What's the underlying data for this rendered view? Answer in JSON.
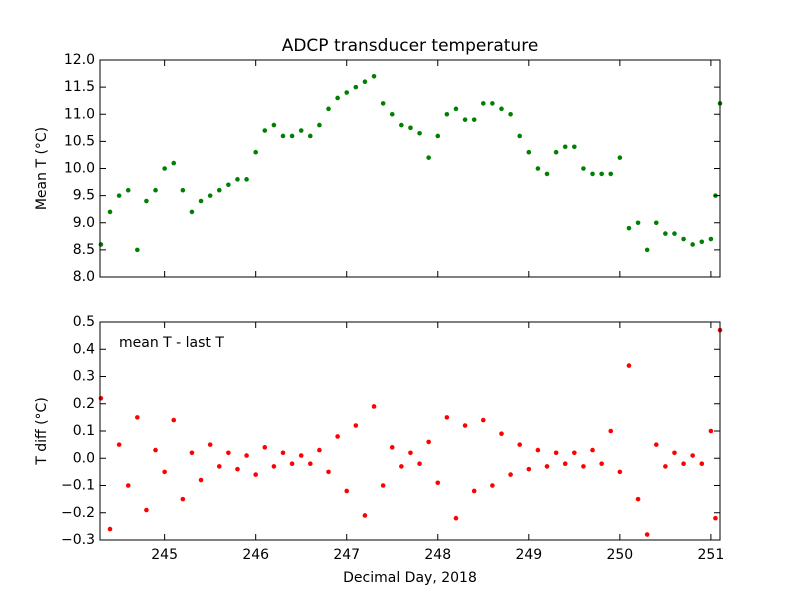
{
  "chart_data": [
    {
      "type": "scatter",
      "title": "ADCP transducer temperature",
      "ylabel": "Mean T (°C)",
      "color": "#008000",
      "x": [
        244.3,
        244.4,
        244.5,
        244.6,
        244.7,
        244.8,
        244.9,
        245.0,
        245.1,
        245.2,
        245.3,
        245.4,
        245.5,
        245.6,
        245.7,
        245.8,
        245.9,
        246.0,
        246.1,
        246.2,
        246.3,
        246.4,
        246.5,
        246.6,
        246.7,
        246.8,
        246.9,
        247.0,
        247.1,
        247.2,
        247.3,
        247.4,
        247.5,
        247.6,
        247.7,
        247.8,
        247.9,
        248.0,
        248.1,
        248.2,
        248.3,
        248.4,
        248.5,
        248.6,
        248.7,
        248.8,
        248.9,
        249.0,
        249.1,
        249.2,
        249.3,
        249.4,
        249.5,
        249.6,
        249.7,
        249.8,
        249.9,
        250.0,
        250.1,
        250.2,
        250.3,
        250.4,
        250.5,
        250.6,
        250.7,
        250.8,
        250.9,
        251.0,
        251.05,
        251.1
      ],
      "values": [
        8.6,
        9.2,
        9.5,
        9.6,
        8.5,
        9.4,
        9.6,
        10.0,
        10.1,
        9.6,
        9.2,
        9.4,
        9.5,
        9.6,
        9.7,
        9.8,
        9.8,
        10.3,
        10.7,
        10.8,
        10.6,
        10.6,
        10.7,
        10.6,
        10.8,
        11.1,
        11.3,
        11.4,
        11.5,
        11.6,
        11.7,
        11.2,
        11.0,
        10.8,
        10.75,
        10.65,
        10.2,
        10.6,
        11.0,
        11.1,
        10.9,
        10.9,
        11.2,
        11.2,
        11.1,
        11.0,
        10.6,
        10.3,
        10.0,
        9.9,
        10.3,
        10.4,
        10.4,
        10.0,
        9.9,
        9.9,
        9.9,
        10.2,
        8.9,
        9.0,
        8.5,
        9.0,
        8.8,
        8.8,
        8.7,
        8.6,
        8.65,
        8.7,
        9.5,
        11.2
      ],
      "xlim": [
        244.29,
        251.1
      ],
      "xticks": [
        245,
        246,
        247,
        248,
        249,
        250,
        251
      ],
      "ylim": [
        8.0,
        12.0
      ],
      "yticks": [
        {
          "value": 8.0,
          "label": "8.0"
        },
        {
          "value": 8.5,
          "label": "8.5"
        },
        {
          "value": 9.0,
          "label": "9.0"
        },
        {
          "value": 9.5,
          "label": "9.5"
        },
        {
          "value": 10.0,
          "label": "10.0"
        },
        {
          "value": 10.5,
          "label": "10.5"
        },
        {
          "value": 11.0,
          "label": "11.0"
        },
        {
          "value": 11.5,
          "label": "11.5"
        },
        {
          "value": 12.0,
          "label": "12.0"
        }
      ]
    },
    {
      "type": "scatter",
      "annotation": "mean T - last T",
      "xlabel": "Decimal Day, 2018",
      "ylabel": "T diff (°C)",
      "color": "#ff0000",
      "x": [
        244.3,
        244.4,
        244.5,
        244.6,
        244.7,
        244.8,
        244.9,
        245.0,
        245.1,
        245.2,
        245.3,
        245.4,
        245.5,
        245.6,
        245.7,
        245.8,
        245.9,
        246.0,
        246.1,
        246.2,
        246.3,
        246.4,
        246.5,
        246.6,
        246.7,
        246.8,
        246.9,
        247.0,
        247.1,
        247.2,
        247.3,
        247.4,
        247.5,
        247.6,
        247.7,
        247.8,
        247.9,
        248.0,
        248.1,
        248.2,
        248.3,
        248.4,
        248.5,
        248.6,
        248.7,
        248.8,
        248.9,
        249.0,
        249.1,
        249.2,
        249.3,
        249.4,
        249.5,
        249.6,
        249.7,
        249.8,
        249.9,
        250.0,
        250.1,
        250.2,
        250.3,
        250.4,
        250.5,
        250.6,
        250.7,
        250.8,
        250.9,
        251.0,
        251.05,
        251.1
      ],
      "values": [
        0.22,
        -0.26,
        0.05,
        -0.1,
        0.15,
        -0.19,
        0.03,
        -0.05,
        0.14,
        -0.15,
        0.02,
        -0.08,
        0.05,
        -0.03,
        0.02,
        -0.04,
        0.01,
        -0.06,
        0.04,
        -0.03,
        0.02,
        -0.02,
        0.01,
        -0.02,
        0.03,
        -0.05,
        0.08,
        -0.12,
        0.12,
        -0.21,
        0.19,
        -0.1,
        0.04,
        -0.03,
        0.02,
        -0.02,
        0.06,
        -0.09,
        0.15,
        -0.22,
        0.12,
        -0.12,
        0.14,
        -0.1,
        0.09,
        -0.06,
        0.05,
        -0.04,
        0.03,
        -0.03,
        0.02,
        -0.02,
        0.02,
        -0.03,
        0.03,
        -0.02,
        0.1,
        -0.05,
        0.34,
        -0.15,
        -0.28,
        0.05,
        -0.03,
        0.02,
        -0.02,
        0.01,
        -0.02,
        0.1,
        -0.22,
        0.47
      ],
      "xlim": [
        244.29,
        251.1
      ],
      "xticks": [
        245,
        246,
        247,
        248,
        249,
        250,
        251
      ],
      "ylim": [
        -0.3,
        0.5
      ],
      "yticks": [
        {
          "value": -0.3,
          "label": "−0.3"
        },
        {
          "value": -0.2,
          "label": "−0.2"
        },
        {
          "value": -0.1,
          "label": "−0.1"
        },
        {
          "value": 0.0,
          "label": "0.0"
        },
        {
          "value": 0.1,
          "label": "0.1"
        },
        {
          "value": 0.2,
          "label": "0.2"
        },
        {
          "value": 0.3,
          "label": "0.3"
        },
        {
          "value": 0.4,
          "label": "0.4"
        },
        {
          "value": 0.5,
          "label": "0.5"
        }
      ]
    }
  ]
}
